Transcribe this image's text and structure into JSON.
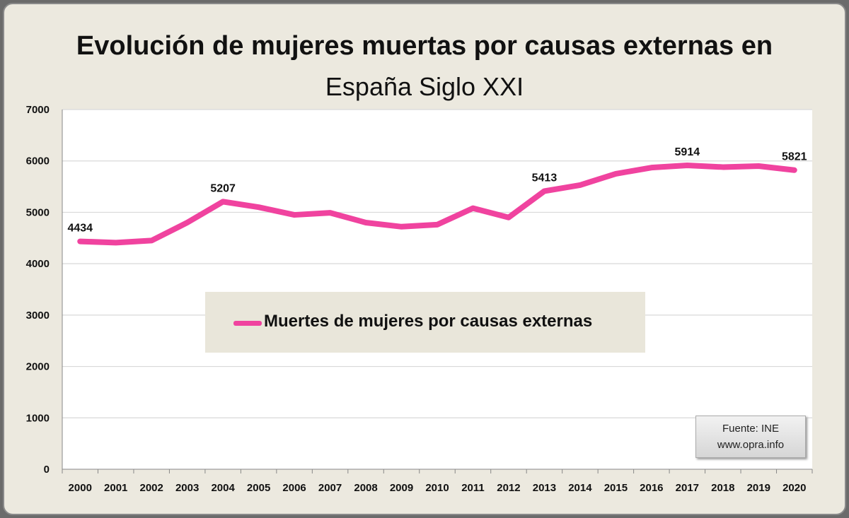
{
  "chart_data": {
    "type": "line",
    "title": "Evolución de mujeres muertas por causas externas en",
    "subtitle": "España Siglo XXI",
    "categories": [
      "2000",
      "2001",
      "2002",
      "2003",
      "2004",
      "2005",
      "2006",
      "2007",
      "2008",
      "2009",
      "2010",
      "2011",
      "2012",
      "2013",
      "2014",
      "2015",
      "2016",
      "2017",
      "2018",
      "2019",
      "2020"
    ],
    "series": [
      {
        "name": "Muertes de mujeres por causas externas",
        "color": "#f0439f",
        "values": [
          4434,
          4410,
          4450,
          4800,
          5207,
          5100,
          4950,
          4990,
          4800,
          4720,
          4760,
          5080,
          4900,
          5413,
          5530,
          5750,
          5870,
          5914,
          5880,
          5900,
          5821
        ]
      }
    ],
    "data_labels": {
      "2000": "4434",
      "2004": "5207",
      "2013": "5413",
      "2017": "5914",
      "2020": "5821"
    },
    "ylim": [
      0,
      7000
    ],
    "yticks": [
      "0",
      "1000",
      "2000",
      "3000",
      "4000",
      "5000",
      "6000",
      "7000"
    ],
    "grid": true,
    "legend_placement": "center"
  },
  "source": {
    "line1": "Fuente: INE",
    "line2": "www.opra.info"
  }
}
